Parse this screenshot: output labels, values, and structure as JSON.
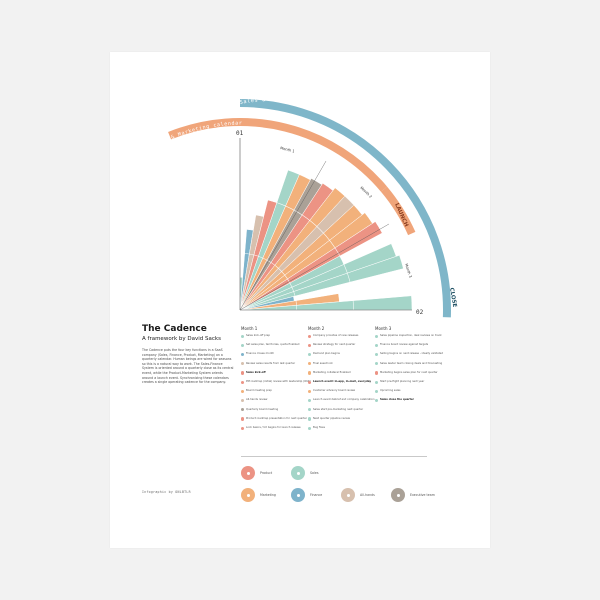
{
  "title": "The Cadence",
  "subtitle": "A framework by David Sacks",
  "description": "The Cadence puts the four key functions in a SaaS company (Sales, Finance, Product, Marketing) on a quarterly calendar. Human beings are wired for seasons so this is a natural way to work. The Sales-Finance System is oriented around a quarterly close as its central event, while the Product-Marketing System orients around a launch event. Synchronizing these calendars creates a single operating cadence for the company.",
  "credit": "Infographic by ONLBTLR",
  "wheel": {
    "outer_band_label": "Sales & Finance calendar",
    "inner_band_label": "Product & Marketing calendar",
    "launch_label": "LAUNCH",
    "close_label": "CLOSE",
    "start_label": "01",
    "end_label": "02",
    "month_labels": [
      "Month 1",
      "Month 2",
      "Month 3"
    ],
    "colors": {
      "product": "#ec9384",
      "sales": "#a4d5c8",
      "marketing": "#f2b17b",
      "finance": "#7eb3cb",
      "all_hands": "#d7c0ae",
      "executive": "#aaa197",
      "outer_band": "#7fb6c9",
      "inner_band": "#f0a57a",
      "axis": "#555555"
    },
    "sectors": [
      {
        "type": "sales",
        "level": 0.19
      },
      {
        "type": "finance",
        "level": 0.47
      },
      {
        "type": "all_hands",
        "level": 0.56
      },
      {
        "type": "product",
        "level": 0.66
      },
      {
        "type": "sales",
        "level": 0.86
      },
      {
        "type": "marketing",
        "level": 0.86
      },
      {
        "type": "executive",
        "level": 0.87
      },
      {
        "type": "product",
        "level": 0.88
      },
      {
        "type": "marketing",
        "level": 0.9
      },
      {
        "type": "all_hands",
        "level": 0.9
      },
      {
        "type": "marketing",
        "level": 0.9
      },
      {
        "type": "marketing",
        "level": 0.92
      },
      {
        "type": "product",
        "level": 0.94
      },
      {
        "type": "sales",
        "level": 0.66
      },
      {
        "type": "sales",
        "level": 0.96
      },
      {
        "type": "sales",
        "level": 0.98
      },
      {
        "type": "finance",
        "level": 0.32
      },
      {
        "type": "marketing",
        "level": 0.58
      },
      {
        "type": "sales",
        "level": 1.0
      }
    ]
  },
  "months": [
    {
      "title": "Month 1",
      "events": [
        {
          "type": "sales",
          "text": "Sales kick-off prep"
        },
        {
          "type": "sales",
          "text": "Set sales plan, territories, quota finalized"
        },
        {
          "type": "finance",
          "text": "Finance closes month"
        },
        {
          "type": "all_hands",
          "text": "Review sales results from last quarter"
        },
        {
          "type": "product",
          "text": "Sales kick-off",
          "bold": true
        },
        {
          "type": "product",
          "text": "PM roadmap (initial) review with leadership (OKR)"
        },
        {
          "type": "marketing",
          "text": "Board meeting prep"
        },
        {
          "type": "all_hands",
          "text": "All-hands review"
        },
        {
          "type": "executive",
          "text": "Quarterly board meeting"
        },
        {
          "type": "product",
          "text": "Product roadmap presentation for next quarter"
        },
        {
          "type": "product",
          "text": "Lock basics / UX begins for launch release"
        }
      ]
    },
    {
      "title": "Month 2",
      "events": [
        {
          "type": "product",
          "text": "Company provides of new releases"
        },
        {
          "type": "product",
          "text": "Review strategy for next quarter"
        },
        {
          "type": "sales",
          "text": "Demand plan begins"
        },
        {
          "type": "marketing",
          "text": "Final asset lock"
        },
        {
          "type": "marketing",
          "text": "Marketing collateral finalized"
        },
        {
          "type": "product",
          "text": "Launch event: in-app, in-mail, everyday",
          "bold": true
        },
        {
          "type": "marketing",
          "text": "Customer advisory board review"
        },
        {
          "type": "sales",
          "text": "Launch event debrief and company celebration"
        },
        {
          "type": "sales",
          "text": "Sales start pre-marketing next quarter"
        },
        {
          "type": "sales",
          "text": "Next quarter pipeline review"
        },
        {
          "type": "sales",
          "text": "Bug fixes"
        }
      ]
    },
    {
      "title": "Month 3",
      "events": [
        {
          "type": "sales",
          "text": "Sales pipeline inspection, deal reviews on track"
        },
        {
          "type": "sales",
          "text": "Finance board review against targets"
        },
        {
          "type": "sales",
          "text": "Selling begins on next release - ideally validated"
        },
        {
          "type": "sales",
          "text": "Sales leader team closing deals and forecasting"
        },
        {
          "type": "product",
          "text": "Marketing begins sales plan for next quarter"
        },
        {
          "type": "sales",
          "text": "Start pre-flight planning next year"
        },
        {
          "type": "sales",
          "text": "Upcoming sales"
        },
        {
          "type": "sales",
          "text": "Sales close the quarter",
          "bold": true
        }
      ]
    }
  ],
  "legend": [
    {
      "type": "product",
      "label": "Product"
    },
    {
      "type": "sales",
      "label": "Sales"
    },
    {
      "type": "marketing",
      "label": "Marketing"
    },
    {
      "type": "finance",
      "label": "Finance"
    },
    {
      "type": "all_hands",
      "label": "All-hands"
    },
    {
      "type": "executive",
      "label": "Executive team"
    }
  ]
}
